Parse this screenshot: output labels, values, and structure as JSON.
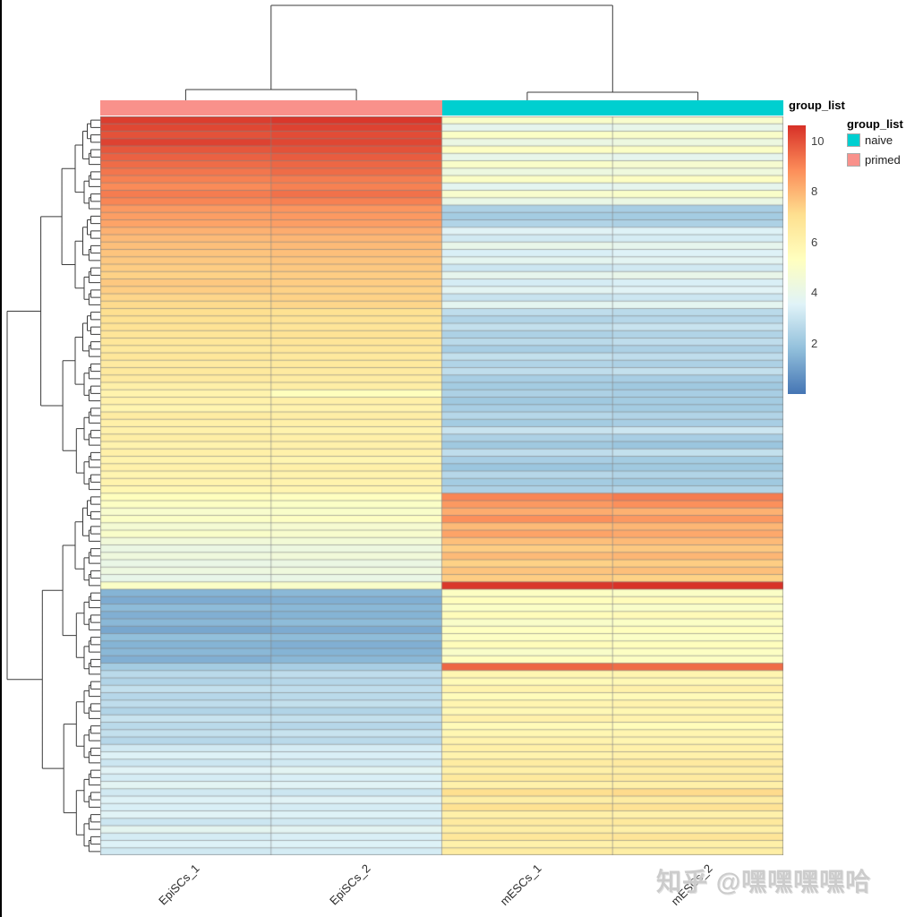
{
  "colors": {
    "naive": "#00CFD0",
    "primed": "#F9918B",
    "dendrogram": "#3b3b3b",
    "grid": "#828282",
    "label_text": "#2b2b2b"
  },
  "annotation": {
    "title": "group_list"
  },
  "legend": {
    "group_title": "group_list",
    "groups": [
      {
        "label": "naive",
        "color": "#00CFD0"
      },
      {
        "label": "primed",
        "color": "#F9918B"
      }
    ],
    "ticks": [
      10,
      8,
      6,
      4,
      2
    ]
  },
  "watermark": {
    "text": "知乎 @嘿嘿嘿嘿哈"
  },
  "chart_data": {
    "type": "heatmap",
    "title": "",
    "columns": [
      "EpiSCs_1",
      "EpiSCs_2",
      "mESCs_1",
      "mESCs_2"
    ],
    "column_groups": [
      "primed",
      "primed",
      "naive",
      "naive"
    ],
    "annotation_title": "group_list",
    "value_range": [
      0,
      10.64
    ],
    "colormap": [
      "#4575B4",
      "#91BFDB",
      "#E0F3F8",
      "#FFFFBF",
      "#FEE090",
      "#FC8D59",
      "#D73027"
    ],
    "clustering": {
      "rows": true,
      "columns": true
    },
    "rows": [
      [
        10.4,
        10.5,
        5.0,
        4.9
      ],
      [
        10.2,
        10.3,
        3.9,
        4.0
      ],
      [
        10.0,
        10.1,
        5.1,
        5.0
      ],
      [
        10.3,
        10.2,
        4.2,
        4.3
      ],
      [
        9.9,
        10.0,
        5.2,
        5.1
      ],
      [
        9.7,
        9.8,
        4.0,
        3.9
      ],
      [
        9.5,
        9.6,
        5.0,
        4.8
      ],
      [
        9.3,
        9.5,
        4.3,
        4.4
      ],
      [
        9.1,
        9.2,
        5.1,
        5.2
      ],
      [
        8.9,
        9.1,
        3.8,
        3.9
      ],
      [
        9.2,
        9.4,
        4.9,
        5.0
      ],
      [
        9.0,
        9.1,
        4.1,
        4.2
      ],
      [
        8.6,
        8.7,
        2.4,
        2.3
      ],
      [
        8.5,
        8.6,
        2.2,
        2.2
      ],
      [
        8.4,
        8.5,
        2.5,
        2.4
      ],
      [
        8.1,
        8.2,
        3.6,
        3.5
      ],
      [
        7.9,
        8.0,
        3.2,
        3.3
      ],
      [
        7.8,
        7.9,
        4.0,
        3.9
      ],
      [
        7.7,
        7.8,
        3.4,
        3.5
      ],
      [
        7.6,
        7.7,
        3.8,
        3.7
      ],
      [
        7.5,
        7.6,
        3.1,
        3.2
      ],
      [
        7.4,
        7.5,
        3.9,
        4.0
      ],
      [
        7.6,
        7.5,
        3.3,
        3.4
      ],
      [
        7.5,
        7.4,
        3.7,
        3.6
      ],
      [
        7.3,
        7.4,
        3.0,
        3.1
      ],
      [
        7.2,
        7.3,
        3.8,
        3.8
      ],
      [
        7.1,
        7.0,
        2.8,
        2.7
      ],
      [
        7.0,
        6.9,
        2.5,
        2.6
      ],
      [
        6.9,
        6.8,
        2.9,
        3.0
      ],
      [
        6.8,
        6.9,
        2.4,
        2.5
      ],
      [
        6.7,
        6.8,
        2.7,
        2.8
      ],
      [
        6.6,
        6.7,
        2.3,
        2.4
      ],
      [
        6.7,
        6.6,
        2.9,
        2.8
      ],
      [
        6.5,
        6.6,
        2.5,
        2.4
      ],
      [
        6.6,
        6.5,
        2.8,
        2.9
      ],
      [
        6.5,
        6.4,
        2.3,
        2.3
      ],
      [
        6.2,
        6.3,
        2.2,
        2.1
      ],
      [
        6.0,
        5.4,
        2.4,
        2.3
      ],
      [
        6.1,
        6.2,
        2.1,
        2.2
      ],
      [
        5.9,
        6.0,
        2.3,
        2.2
      ],
      [
        6.4,
        6.3,
        2.6,
        2.5
      ],
      [
        6.2,
        6.2,
        2.2,
        2.3
      ],
      [
        6.1,
        6.0,
        3.0,
        3.1
      ],
      [
        6.3,
        6.2,
        2.4,
        2.3
      ],
      [
        6.0,
        6.1,
        2.1,
        2.0
      ],
      [
        6.2,
        6.1,
        2.8,
        2.9
      ],
      [
        6.0,
        5.9,
        2.3,
        2.2
      ],
      [
        6.1,
        6.2,
        2.0,
        2.1
      ],
      [
        5.9,
        6.0,
        2.6,
        2.5
      ],
      [
        6.0,
        6.0,
        2.2,
        2.1
      ],
      [
        5.8,
        5.9,
        2.4,
        2.5
      ],
      [
        5.4,
        5.3,
        9.0,
        9.2
      ],
      [
        5.2,
        5.1,
        8.6,
        8.8
      ],
      [
        4.9,
        5.0,
        8.2,
        8.1
      ],
      [
        5.1,
        5.2,
        8.8,
        8.6
      ],
      [
        4.7,
        4.8,
        7.9,
        8.0
      ],
      [
        5.0,
        4.9,
        8.4,
        8.3
      ],
      [
        4.5,
        4.6,
        7.8,
        7.9
      ],
      [
        4.2,
        4.3,
        7.5,
        7.6
      ],
      [
        4.4,
        4.5,
        7.9,
        8.0
      ],
      [
        4.1,
        4.2,
        7.4,
        7.5
      ],
      [
        4.3,
        4.4,
        7.7,
        7.8
      ],
      [
        4.0,
        4.1,
        7.5,
        7.4
      ],
      [
        5.1,
        5.0,
        10.5,
        10.6
      ],
      [
        1.5,
        1.6,
        5.2,
        5.1
      ],
      [
        1.3,
        1.4,
        5.4,
        5.5
      ],
      [
        1.7,
        1.6,
        5.1,
        5.0
      ],
      [
        1.4,
        1.5,
        5.5,
        5.6
      ],
      [
        1.6,
        1.7,
        5.0,
        5.1
      ],
      [
        1.2,
        1.3,
        5.3,
        5.4
      ],
      [
        1.8,
        1.7,
        5.2,
        5.1
      ],
      [
        1.5,
        1.4,
        5.5,
        5.4
      ],
      [
        1.6,
        1.5,
        5.0,
        5.2
      ],
      [
        1.4,
        1.6,
        5.3,
        5.2
      ],
      [
        2.2,
        2.3,
        9.6,
        9.5
      ],
      [
        2.7,
        2.8,
        5.8,
        5.9
      ],
      [
        2.5,
        2.6,
        5.6,
        5.7
      ],
      [
        2.9,
        2.8,
        6.0,
        6.1
      ],
      [
        2.6,
        2.7,
        5.5,
        5.6
      ],
      [
        2.8,
        2.9,
        5.9,
        6.0
      ],
      [
        2.5,
        2.5,
        5.7,
        5.8
      ],
      [
        3.0,
        2.9,
        6.1,
        6.0
      ],
      [
        2.7,
        2.6,
        5.6,
        5.5
      ],
      [
        2.9,
        3.0,
        5.8,
        5.9
      ],
      [
        2.6,
        2.7,
        6.0,
        5.9
      ],
      [
        3.2,
        3.3,
        6.2,
        6.1
      ],
      [
        3.5,
        3.4,
        6.0,
        6.1
      ],
      [
        3.1,
        3.2,
        6.4,
        6.5
      ],
      [
        3.6,
        3.7,
        6.2,
        6.3
      ],
      [
        3.3,
        3.4,
        6.6,
        6.5
      ],
      [
        3.7,
        3.6,
        6.1,
        6.2
      ],
      [
        3.2,
        3.1,
        7.1,
        7.2
      ],
      [
        3.5,
        3.6,
        6.3,
        6.4
      ],
      [
        3.4,
        3.3,
        7.0,
        6.9
      ],
      [
        3.6,
        3.5,
        6.2,
        6.1
      ],
      [
        3.1,
        3.2,
        6.5,
        6.6
      ],
      [
        3.8,
        3.7,
        6.3,
        6.2
      ],
      [
        3.3,
        3.4,
        6.7,
        6.8
      ],
      [
        3.5,
        3.5,
        6.1,
        6.2
      ],
      [
        3.2,
        3.3,
        6.4,
        6.3
      ]
    ]
  }
}
